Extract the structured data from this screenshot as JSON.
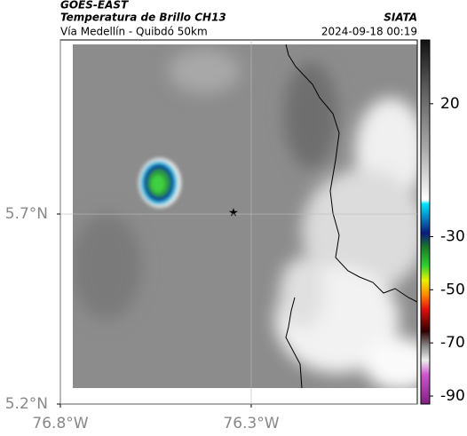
{
  "header": {
    "satellite": "GOES-EAST",
    "product": "Temperatura de Brillo CH13",
    "region": "Vía Medellín - Quibdó 50km",
    "source": "SIATA",
    "timestamp": "2024-09-18 00:19"
  },
  "map": {
    "xlim": [
      -76.8,
      -75.865
    ],
    "ylim": [
      5.2,
      6.158
    ],
    "xticks": [
      {
        "value": -76.8,
        "label": "76.8°W"
      },
      {
        "value": -76.3,
        "label": "76.3°W"
      }
    ],
    "yticks": [
      {
        "value": 5.2,
        "label": "5.2°N"
      },
      {
        "value": 5.7,
        "label": "5.7°N"
      }
    ],
    "grid": true
  },
  "colorbar": {
    "lim": [
      -93,
      44
    ],
    "ticks": [
      20,
      -30,
      -50,
      -70,
      -90
    ]
  }
}
